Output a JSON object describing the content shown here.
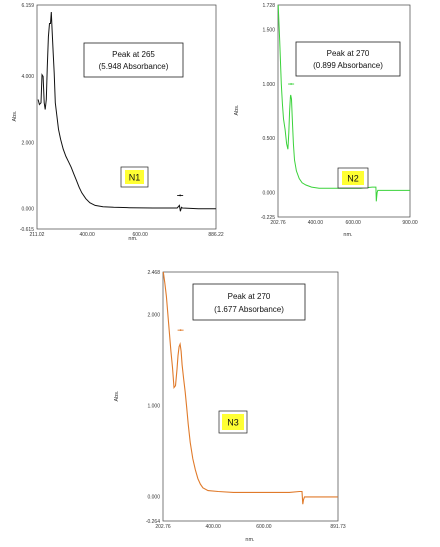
{
  "chart_data": [
    {
      "id": "n1",
      "type": "line",
      "color": "#111111",
      "ylabel": "Abs.",
      "xlabel": "nm.",
      "xlim": [
        211.02,
        886.22
      ],
      "ylim": [
        -0.615,
        6.159
      ],
      "xticks": [
        "211.02",
        "400.00",
        "600.00",
        "886.22"
      ],
      "yticks": [
        {
          "v": 6.159,
          "t": "6.159"
        },
        {
          "v": 4.0,
          "t": "4.000"
        },
        {
          "v": 2.0,
          "t": "2.000"
        },
        {
          "v": 0.0,
          "t": "0.000"
        },
        {
          "v": -0.615,
          "t": "-0.615"
        }
      ],
      "annotation": {
        "line1": "Peak at 265",
        "line2": "(5.948 Absorbance)"
      },
      "tag": "N1",
      "peak_marker": {
        "x": 751,
        "y": 0.4
      },
      "series": [
        {
          "x": [
            215,
            220,
            226,
            230,
            234,
            238,
            242,
            246,
            250,
            254,
            258,
            262,
            265,
            268,
            272,
            276,
            280,
            286,
            292,
            300,
            310,
            320,
            330,
            340,
            350,
            360,
            370,
            380,
            395,
            410,
            430,
            460,
            500,
            560,
            650,
            740,
            748,
            752,
            756,
            760,
            780,
            820,
            860,
            886
          ],
          "y": [
            3.3,
            3.15,
            3.2,
            4.05,
            4.0,
            3.2,
            3.0,
            3.3,
            4.3,
            5.2,
            5.6,
            5.6,
            5.948,
            5.4,
            4.7,
            4.1,
            3.2,
            2.8,
            2.4,
            2.1,
            1.8,
            1.58,
            1.42,
            1.25,
            1.05,
            0.85,
            0.65,
            0.48,
            0.3,
            0.18,
            0.1,
            0.06,
            0.04,
            0.03,
            0.02,
            0.02,
            0.1,
            -0.08,
            0.04,
            0.02,
            0.01,
            0.0,
            0.0,
            0.0
          ]
        }
      ]
    },
    {
      "id": "n2",
      "type": "line",
      "color": "#3ad23a",
      "ylabel": "Abs.",
      "xlabel": "nm.",
      "xlim": [
        202.76,
        900.0
      ],
      "ylim": [
        -0.225,
        1.728
      ],
      "xticks": [
        "202.76",
        "400.00",
        "600.00",
        "900.00"
      ],
      "yticks": [
        {
          "v": 1.728,
          "t": "1.728"
        },
        {
          "v": 1.5,
          "t": "1.500"
        },
        {
          "v": 1.0,
          "t": "1.000"
        },
        {
          "v": 0.5,
          "t": "0.500"
        },
        {
          "v": 0.0,
          "t": "0.000"
        },
        {
          "v": -0.225,
          "t": "-0.225"
        }
      ],
      "annotation": {
        "line1": "Peak at 270",
        "line2": "(0.899 Absorbance)"
      },
      "tag": "N2",
      "peak_marker": {
        "x": 272,
        "y": 1.0
      },
      "series": [
        {
          "x": [
            204,
            208,
            212,
            216,
            220,
            226,
            232,
            240,
            248,
            255,
            260,
            264,
            268,
            270,
            274,
            278,
            284,
            290,
            300,
            315,
            330,
            350,
            380,
            420,
            480,
            560,
            640,
            700,
            720,
            722,
            726,
            730,
            750,
            800,
            900
          ],
          "y": [
            1.728,
            1.55,
            1.4,
            1.2,
            1.0,
            0.82,
            0.68,
            0.58,
            0.45,
            0.4,
            0.55,
            0.75,
            0.88,
            0.899,
            0.86,
            0.7,
            0.45,
            0.3,
            0.2,
            0.13,
            0.09,
            0.07,
            0.05,
            0.04,
            0.04,
            0.04,
            0.04,
            0.05,
            0.05,
            -0.08,
            0.0,
            0.02,
            0.02,
            0.02,
            0.02
          ]
        }
      ]
    },
    {
      "id": "n3",
      "type": "line",
      "color": "#e07a2a",
      "ylabel": "Abs.",
      "xlabel": "nm.",
      "xlim": [
        202.76,
        891.73
      ],
      "ylim": [
        -0.264,
        2.468
      ],
      "xticks": [
        "202.76",
        "400.00",
        "600.00",
        "891.73"
      ],
      "yticks": [
        {
          "v": 2.468,
          "t": "2.468"
        },
        {
          "v": 2.0,
          "t": "2.000"
        },
        {
          "v": 1.0,
          "t": "1.000"
        },
        {
          "v": 0.0,
          "t": "0.000"
        },
        {
          "v": -0.264,
          "t": "-0.264"
        }
      ],
      "annotation": {
        "line1": "Peak at 270",
        "line2": "(1.677 Absorbance)"
      },
      "tag": "N3",
      "peak_marker": {
        "x": 272,
        "y": 1.83
      },
      "series": [
        {
          "x": [
            204,
            210,
            216,
            222,
            228,
            234,
            240,
            246,
            252,
            258,
            262,
            266,
            270,
            274,
            278,
            284,
            290,
            296,
            302,
            310,
            320,
            330,
            340,
            350,
            360,
            380,
            420,
            480,
            560,
            640,
            700,
            740,
            750,
            753,
            756,
            760,
            780,
            820,
            891
          ],
          "y": [
            2.468,
            2.35,
            2.2,
            2.0,
            1.8,
            1.6,
            1.42,
            1.2,
            1.22,
            1.4,
            1.55,
            1.65,
            1.677,
            1.6,
            1.45,
            1.3,
            1.15,
            0.98,
            0.8,
            0.6,
            0.42,
            0.3,
            0.2,
            0.14,
            0.1,
            0.07,
            0.06,
            0.05,
            0.05,
            0.05,
            0.05,
            0.06,
            0.06,
            -0.08,
            -0.03,
            0.0,
            0.0,
            0.0,
            0.0
          ]
        }
      ]
    }
  ]
}
